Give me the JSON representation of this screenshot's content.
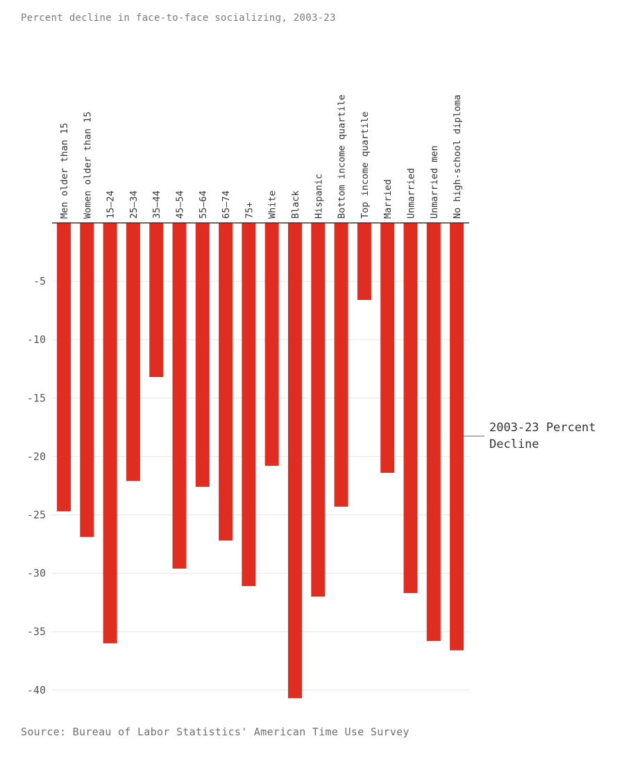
{
  "subtitle": "Percent decline in face-to-face socializing, 2003-23",
  "source": "Source: Bureau of Labor Statistics' American Time Use Survey",
  "chart_data": {
    "type": "bar",
    "title": "",
    "xlabel": "",
    "ylabel": "",
    "ylim": [
      -41,
      0
    ],
    "yticks": [
      -5,
      -10,
      -15,
      -20,
      -25,
      -30,
      -35,
      -40
    ],
    "grid": true,
    "bar_color": "#e02d22",
    "categories": [
      "Men older than 15",
      "Women older than 15",
      "15–24",
      "25–34",
      "35–44",
      "45–54",
      "55–64",
      "65–74",
      "75+",
      "White",
      "Black",
      "Hispanic",
      "Bottom income quartile",
      "Top income quartile",
      "Married",
      "Unmarried",
      "Unmarried men",
      "No high-school diploma"
    ],
    "series": [
      {
        "name": "2003-23 Percent Decline",
        "values": [
          -24.7,
          -26.9,
          -36.0,
          -22.1,
          -13.2,
          -29.6,
          -22.6,
          -27.2,
          -31.1,
          -20.8,
          -40.7,
          -32.0,
          -24.3,
          -6.6,
          -21.4,
          -31.7,
          -35.8,
          -36.6
        ]
      }
    ],
    "legend": {
      "placement": "right",
      "label": "2003-23 Percent Decline"
    }
  }
}
